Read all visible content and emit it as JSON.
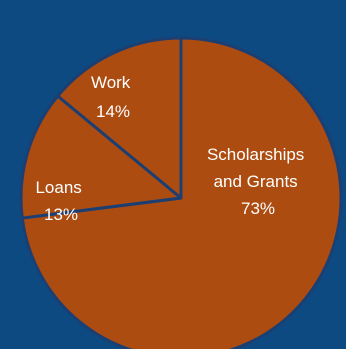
{
  "colors": {
    "background": "#0e4a82",
    "slice_fill": "#ad4c10",
    "slice_stroke": "#1b3f73"
  },
  "chart_data": {
    "type": "pie",
    "categories": [
      "Scholarships and Grants",
      "Loans",
      "Work"
    ],
    "values": [
      73,
      13,
      14
    ],
    "value_labels": [
      "73%",
      "13%",
      "14%"
    ],
    "label_lines": [
      [
        "Scholarships",
        "and Grants",
        "73%"
      ],
      [
        "Loans",
        "13%"
      ],
      [
        "Work",
        "14%"
      ]
    ],
    "legend": "none"
  }
}
